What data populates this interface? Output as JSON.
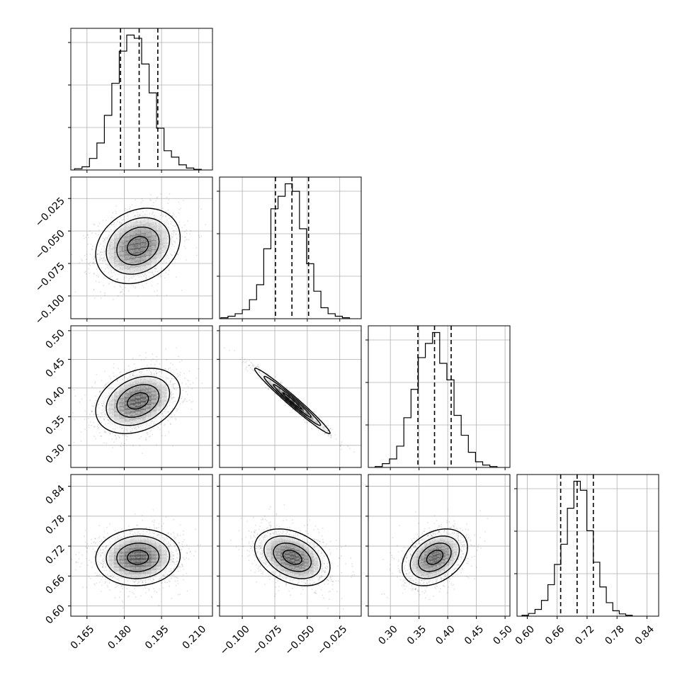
{
  "chart_data": [
    {
      "type": "histogram",
      "param": 1,
      "bin_edges": [
        0.16,
        0.163,
        0.166,
        0.169,
        0.172,
        0.175,
        0.178,
        0.181,
        0.184,
        0.187,
        0.19,
        0.193,
        0.196,
        0.199,
        0.202,
        0.205,
        0.208,
        0.211
      ],
      "counts": [
        2,
        5,
        18,
        42,
        85,
        135,
        185,
        210,
        205,
        165,
        120,
        65,
        30,
        20,
        8,
        3,
        1
      ],
      "quantiles": [
        0.1785,
        0.186,
        0.1935
      ],
      "x_ticks": [
        "0.165",
        "0.180",
        "0.195",
        "0.210"
      ],
      "xlim": [
        0.1585,
        0.2155
      ],
      "grid": true
    },
    {
      "type": "scatter-density",
      "x_param": 1,
      "y_param": 2,
      "center": [
        0.1855,
        -0.0615
      ],
      "spread": [
        0.0085,
        0.0145
      ],
      "rho": 0.22,
      "y_ticks": [
        "−0.025",
        "−0.050",
        "−0.075",
        "−0.100"
      ],
      "xlim": [
        0.1585,
        0.2155
      ],
      "ylim": [
        -0.1175,
        -0.0085
      ],
      "grid": true
    },
    {
      "type": "histogram",
      "param": 2,
      "bin_edges": [
        -0.1165,
        -0.111,
        -0.1055,
        -0.1,
        -0.0945,
        -0.089,
        -0.0835,
        -0.078,
        -0.0725,
        -0.067,
        -0.0615,
        -0.056,
        -0.0505,
        -0.045,
        -0.0395,
        -0.034,
        -0.0285,
        -0.023,
        -0.0175
      ],
      "counts": [
        2,
        5,
        10,
        18,
        38,
        68,
        140,
        220,
        245,
        270,
        255,
        180,
        110,
        55,
        22,
        10,
        5,
        2
      ],
      "quantiles": [
        -0.0745,
        -0.0618,
        -0.049
      ],
      "x_ticks": [
        "−0.100",
        "−0.075",
        "−0.050",
        "−0.025"
      ],
      "xlim": [
        -0.1175,
        -0.0085
      ],
      "grid": true
    },
    {
      "type": "scatter-density",
      "x_param": 1,
      "y_param": 3,
      "center": [
        0.1855,
        0.3775
      ],
      "spread": [
        0.0085,
        0.0285
      ],
      "rho": 0.3,
      "y_ticks": [
        "0.30",
        "0.35",
        "0.40",
        "0.45",
        "0.50"
      ],
      "xlim": [
        0.1585,
        0.2155
      ],
      "ylim": [
        0.2615,
        0.5085
      ],
      "grid": true
    },
    {
      "type": "scatter-density",
      "x_param": 2,
      "y_param": 3,
      "center": [
        -0.0615,
        0.3775
      ],
      "spread": [
        0.0145,
        0.0285
      ],
      "rho": -0.98,
      "xlim": [
        -0.1175,
        -0.0085
      ],
      "ylim": [
        0.2615,
        0.5085
      ],
      "grid": true
    },
    {
      "type": "histogram",
      "param": 3,
      "bin_edges": [
        0.2735,
        0.286,
        0.2985,
        0.311,
        0.3235,
        0.336,
        0.3485,
        0.361,
        0.3735,
        0.386,
        0.3985,
        0.411,
        0.4235,
        0.436,
        0.4485,
        0.461,
        0.4735,
        0.486
      ],
      "counts": [
        2,
        8,
        18,
        45,
        105,
        165,
        232,
        262,
        285,
        220,
        185,
        110,
        68,
        32,
        12,
        5,
        2
      ],
      "quantiles": [
        0.348,
        0.377,
        0.406
      ],
      "x_ticks": [
        "0.30",
        "0.35",
        "0.40",
        "0.45",
        "0.50"
      ],
      "xlim": [
        0.2615,
        0.5085
      ],
      "grid": true
    },
    {
      "type": "scatter-density",
      "x_param": 1,
      "y_param": 4,
      "center": [
        0.1855,
        0.6975
      ],
      "spread": [
        0.0085,
        0.0285
      ],
      "rho": 0.05,
      "y_ticks": [
        "0.60",
        "0.66",
        "0.72",
        "0.78",
        "0.84"
      ],
      "xlim": [
        0.1585,
        0.2155
      ],
      "ylim": [
        0.5795,
        0.8635
      ],
      "grid": true
    },
    {
      "type": "scatter-density",
      "x_param": 2,
      "y_param": 4,
      "center": [
        -0.0615,
        0.6975
      ],
      "spread": [
        0.0145,
        0.0285
      ],
      "rho": -0.35,
      "xlim": [
        -0.1175,
        -0.0085
      ],
      "ylim": [
        0.5795,
        0.8635
      ],
      "grid": true
    },
    {
      "type": "scatter-density",
      "x_param": 3,
      "y_param": 4,
      "center": [
        0.3775,
        0.6975
      ],
      "spread": [
        0.0285,
        0.0285
      ],
      "rho": 0.35,
      "xlim": [
        0.2615,
        0.5085
      ],
      "ylim": [
        0.5795,
        0.8635
      ],
      "grid": true
    },
    {
      "type": "histogram",
      "param": 4,
      "bin_edges": [
        0.5895,
        0.6025,
        0.6155,
        0.6285,
        0.6415,
        0.6545,
        0.6675,
        0.6805,
        0.6935,
        0.7065,
        0.7195,
        0.7325,
        0.7455,
        0.7585,
        0.7715,
        0.7845,
        0.7975,
        0.8105
      ],
      "counts": [
        2,
        6,
        15,
        35,
        70,
        115,
        160,
        240,
        300,
        280,
        190,
        120,
        65,
        30,
        12,
        5,
        2
      ],
      "quantiles": [
        0.667,
        0.7,
        0.7325
      ],
      "x_ticks": [
        "0.60",
        "0.66",
        "0.72",
        "0.78",
        "0.84"
      ],
      "xlim": [
        0.5795,
        0.8635
      ],
      "grid": true
    }
  ]
}
